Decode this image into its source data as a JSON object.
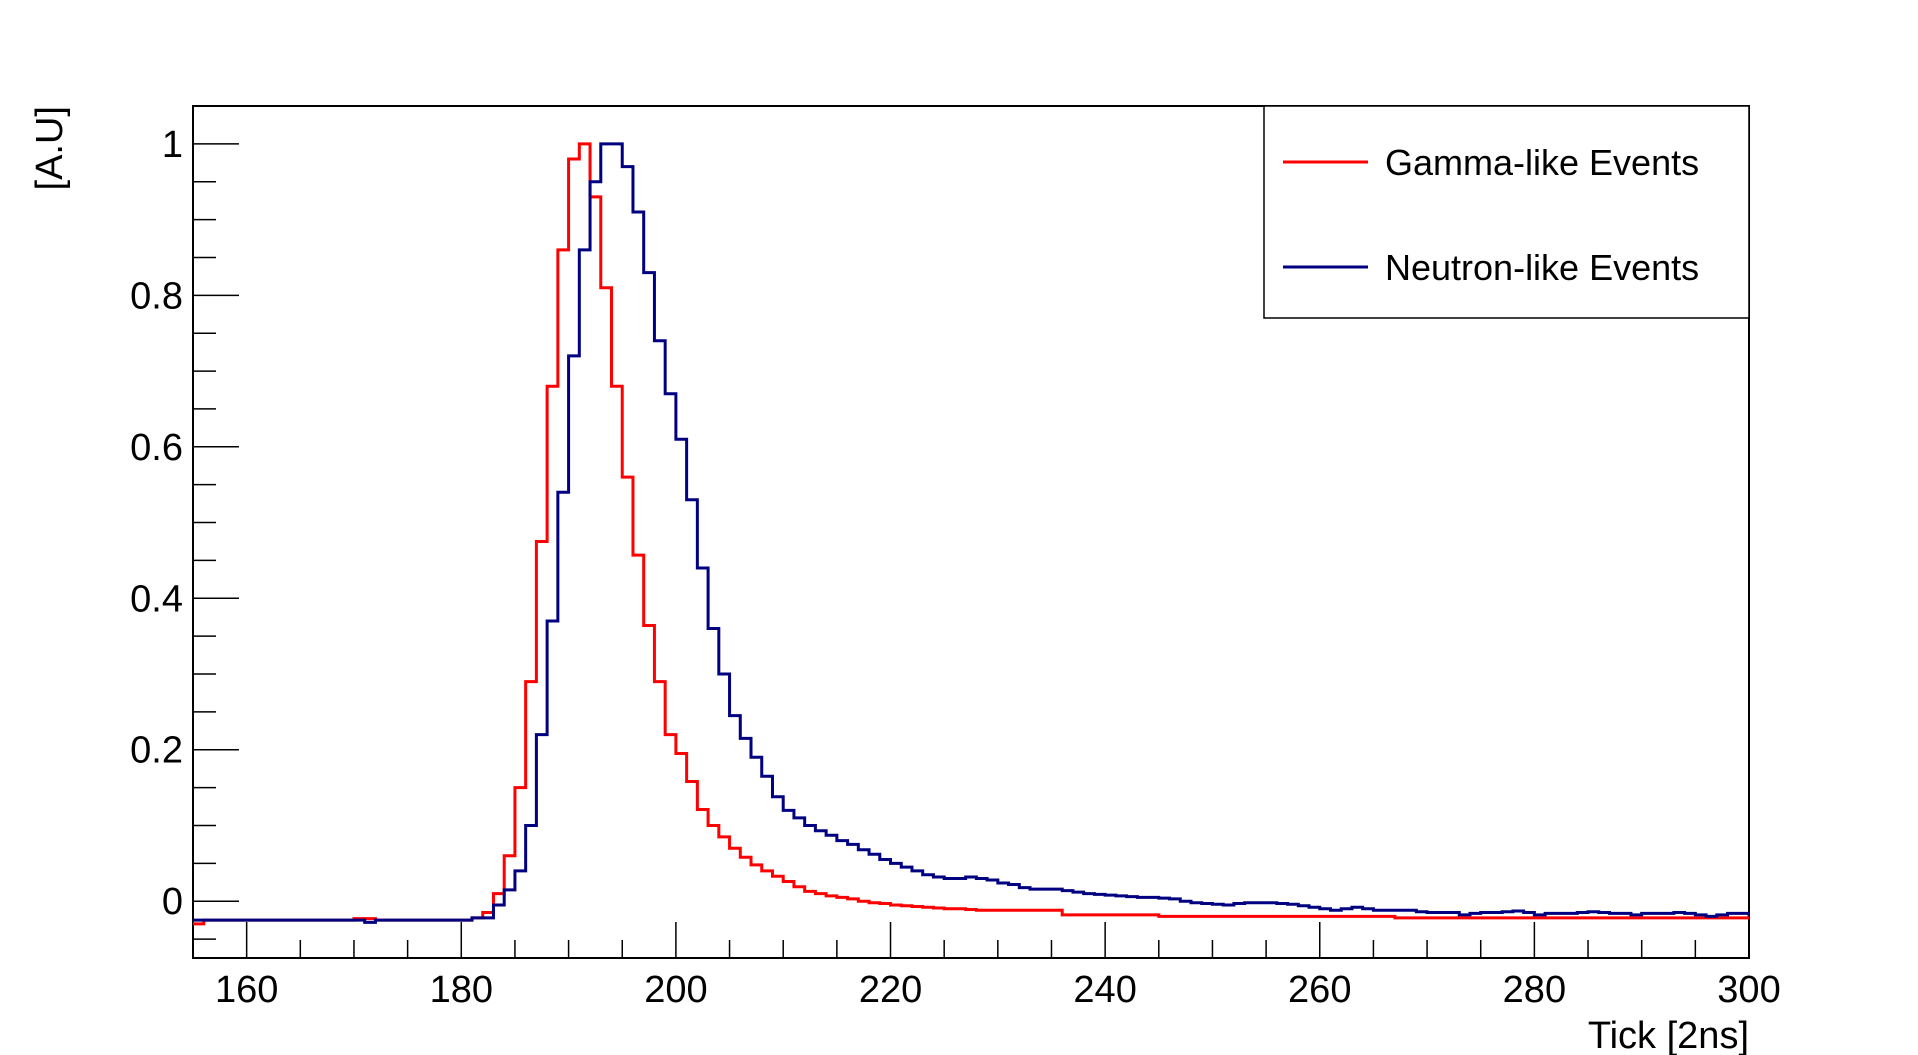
{
  "chart_data": {
    "type": "line",
    "step": true,
    "xlabel": "Tick [2ns]",
    "ylabel": "[A.U]",
    "xlim": [
      155,
      300
    ],
    "ylim": [
      -0.075,
      1.05
    ],
    "x_ticks": [
      160,
      180,
      200,
      220,
      240,
      260,
      280,
      300
    ],
    "x_tick_labels": [
      "160",
      "180",
      "200",
      "220",
      "240",
      "260",
      "280",
      "300"
    ],
    "y_ticks": [
      0,
      0.2,
      0.4,
      0.6,
      0.8,
      1
    ],
    "y_tick_labels": [
      "0",
      "0.2",
      "0.4",
      "0.6",
      "0.8",
      "1"
    ],
    "grid": false,
    "legend_position": "top-right",
    "x_start": 155,
    "bin_width": 1,
    "series": [
      {
        "name": "Gamma-like Events",
        "color": "#ff0000",
        "values": [
          -0.03,
          -0.025,
          -0.025,
          -0.025,
          -0.025,
          -0.025,
          -0.025,
          -0.025,
          -0.025,
          -0.025,
          -0.025,
          -0.025,
          -0.025,
          -0.025,
          -0.025,
          -0.023,
          -0.023,
          -0.025,
          -0.025,
          -0.025,
          -0.025,
          -0.025,
          -0.025,
          -0.025,
          -0.025,
          -0.025,
          -0.022,
          -0.015,
          0.01,
          0.06,
          0.15,
          0.29,
          0.475,
          0.68,
          0.86,
          0.98,
          1.0,
          0.93,
          0.81,
          0.68,
          0.56,
          0.457,
          0.364,
          0.29,
          0.22,
          0.195,
          0.158,
          0.121,
          0.1,
          0.085,
          0.07,
          0.058,
          0.048,
          0.04,
          0.033,
          0.026,
          0.019,
          0.013,
          0.01,
          0.007,
          0.005,
          0.003,
          0.0,
          -0.002,
          -0.003,
          -0.005,
          -0.006,
          -0.007,
          -0.008,
          -0.009,
          -0.01,
          -0.01,
          -0.011,
          -0.012,
          -0.012,
          -0.012,
          -0.012,
          -0.012,
          -0.012,
          -0.012,
          -0.012,
          -0.018,
          -0.018,
          -0.018,
          -0.018,
          -0.018,
          -0.018,
          -0.018,
          -0.018,
          -0.018,
          -0.02,
          -0.02,
          -0.02,
          -0.02,
          -0.02,
          -0.02,
          -0.02,
          -0.02,
          -0.02,
          -0.02,
          -0.02,
          -0.02,
          -0.02,
          -0.02,
          -0.02,
          -0.02,
          -0.02,
          -0.02,
          -0.02,
          -0.02,
          -0.02,
          -0.02,
          -0.022,
          -0.022,
          -0.022,
          -0.022,
          -0.022,
          -0.022,
          -0.022,
          -0.022,
          -0.022,
          -0.022,
          -0.022,
          -0.022,
          -0.022,
          -0.022,
          -0.022,
          -0.022,
          -0.022,
          -0.022,
          -0.022,
          -0.022,
          -0.022,
          -0.022,
          -0.022,
          -0.022,
          -0.022,
          -0.022,
          -0.022,
          -0.022,
          -0.022,
          -0.022,
          -0.022,
          -0.022,
          -0.022,
          -0.022,
          -0.022,
          -0.025,
          -0.025
        ]
      },
      {
        "name": "Neutron-like Events",
        "color": "#000080",
        "values": [
          -0.025,
          -0.025,
          -0.025,
          -0.025,
          -0.025,
          -0.025,
          -0.025,
          -0.025,
          -0.025,
          -0.025,
          -0.025,
          -0.025,
          -0.025,
          -0.025,
          -0.025,
          -0.025,
          -0.028,
          -0.025,
          -0.025,
          -0.025,
          -0.025,
          -0.025,
          -0.025,
          -0.025,
          -0.025,
          -0.025,
          -0.022,
          -0.022,
          -0.005,
          0.015,
          0.04,
          0.1,
          0.22,
          0.37,
          0.54,
          0.72,
          0.86,
          0.95,
          1.0,
          1.0,
          0.97,
          0.91,
          0.83,
          0.74,
          0.67,
          0.61,
          0.53,
          0.44,
          0.36,
          0.3,
          0.245,
          0.215,
          0.19,
          0.165,
          0.138,
          0.12,
          0.11,
          0.1,
          0.093,
          0.087,
          0.08,
          0.075,
          0.068,
          0.062,
          0.055,
          0.05,
          0.045,
          0.04,
          0.035,
          0.032,
          0.03,
          0.03,
          0.032,
          0.03,
          0.028,
          0.024,
          0.022,
          0.018,
          0.016,
          0.016,
          0.016,
          0.014,
          0.012,
          0.01,
          0.009,
          0.008,
          0.007,
          0.006,
          0.005,
          0.005,
          0.004,
          0.003,
          0.0,
          -0.002,
          -0.003,
          -0.004,
          -0.005,
          -0.003,
          -0.002,
          -0.002,
          -0.002,
          -0.003,
          -0.004,
          -0.006,
          -0.008,
          -0.01,
          -0.012,
          -0.01,
          -0.008,
          -0.01,
          -0.012,
          -0.012,
          -0.012,
          -0.012,
          -0.014,
          -0.015,
          -0.015,
          -0.015,
          -0.018,
          -0.016,
          -0.015,
          -0.015,
          -0.014,
          -0.013,
          -0.015,
          -0.018,
          -0.016,
          -0.016,
          -0.016,
          -0.015,
          -0.014,
          -0.015,
          -0.016,
          -0.016,
          -0.018,
          -0.016,
          -0.016,
          -0.016,
          -0.015,
          -0.016,
          -0.018,
          -0.02,
          -0.018,
          -0.016,
          -0.016,
          -0.018,
          -0.018,
          -0.016,
          -0.014
        ]
      }
    ]
  }
}
